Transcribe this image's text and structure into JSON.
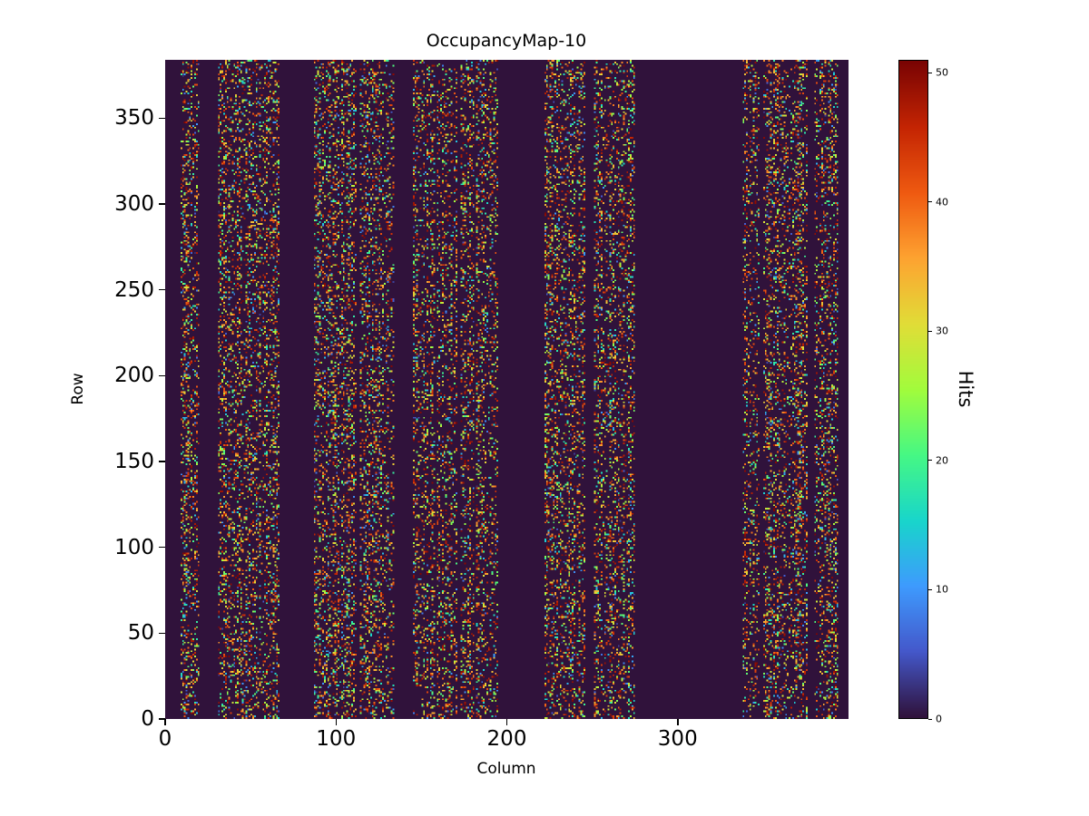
{
  "figure": {
    "background": "#ffffff"
  },
  "chart_data": {
    "type": "heatmap",
    "title": "OccupancyMap-10",
    "xlabel": "Column",
    "ylabel": "Row",
    "colorbar_label": "Hits",
    "x_range": [
      0,
      400
    ],
    "y_range": [
      0,
      384
    ],
    "value_range": [
      0,
      51
    ],
    "x_ticks": [
      0,
      100,
      200,
      300
    ],
    "y_ticks": [
      0,
      50,
      100,
      150,
      200,
      250,
      300,
      350
    ],
    "colorbar_ticks": [
      0,
      10,
      20,
      30,
      40,
      50
    ],
    "grid": false,
    "legend": "colorbar-right",
    "background_value": 0,
    "colormap": {
      "name": "turbo",
      "stops": [
        [
          0.0,
          "#30123b"
        ],
        [
          0.1,
          "#4458cb"
        ],
        [
          0.2,
          "#3e9bfe"
        ],
        [
          0.3,
          "#18d6cb"
        ],
        [
          0.4,
          "#46f884"
        ],
        [
          0.5,
          "#a2fc3c"
        ],
        [
          0.6,
          "#e1dd37"
        ],
        [
          0.7,
          "#fea331"
        ],
        [
          0.8,
          "#ef5a11"
        ],
        [
          0.9,
          "#c42503"
        ],
        [
          1.0,
          "#7a0403"
        ]
      ]
    },
    "occupied_column_bands": [
      [
        9,
        19
      ],
      [
        31,
        66
      ],
      [
        87,
        111
      ],
      [
        114,
        133
      ],
      [
        145,
        157
      ],
      [
        159,
        170
      ],
      [
        173,
        180
      ],
      [
        182,
        194
      ],
      [
        222,
        245
      ],
      [
        251,
        274
      ],
      [
        338,
        347
      ],
      [
        350,
        375
      ],
      [
        380,
        393
      ]
    ],
    "band_fill_probability": 0.3,
    "hit_value_min": 1,
    "hit_value_max": 51,
    "value_bias_exponent": 0.6,
    "random_seed": 10
  }
}
